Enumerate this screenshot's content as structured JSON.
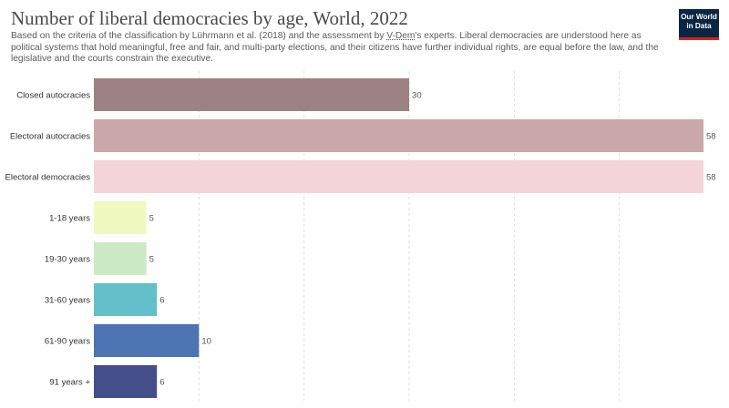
{
  "header": {
    "title": "Number of liberal democracies by age, World, 2022",
    "subtitle_before": "Based on the criteria of the classification by Lührmann et al. (2018) and the assessment by ",
    "subtitle_link": "V-Dem",
    "subtitle_after": "'s experts. Liberal democracies are understood here as political systems that hold meaningful, free and fair, and multi-party elections, and their citizens have further individual rights, are equal before the law, and the legislative and the courts constrain the executive.",
    "logo_line1": "Our World",
    "logo_line2": "in Data"
  },
  "colors": {
    "gridline": "#dddddd",
    "label_text": "#333333",
    "value_text": "#555555",
    "logo_bg": "#0b2545",
    "logo_accent": "#ce261e"
  },
  "chart_data": {
    "type": "bar",
    "orientation": "horizontal",
    "title": "Number of liberal democracies by age, World, 2022",
    "categories": [
      "Closed autocracies",
      "Electoral autocracies",
      "Electoral democracies",
      "1-18 years",
      "19-30 years",
      "31-60 years",
      "61-90 years",
      "91 years +"
    ],
    "values": [
      30,
      58,
      58,
      5,
      5,
      6,
      10,
      6
    ],
    "bar_colors": [
      "#9c8282",
      "#caa8aa",
      "#f3d4d8",
      "#f0fac0",
      "#cbeac3",
      "#63bfca",
      "#4c74b3",
      "#434e8a"
    ],
    "xlim": [
      0,
      58
    ],
    "grid": true,
    "gridlines_at": [
      0,
      10,
      20,
      30,
      40,
      50
    ]
  }
}
